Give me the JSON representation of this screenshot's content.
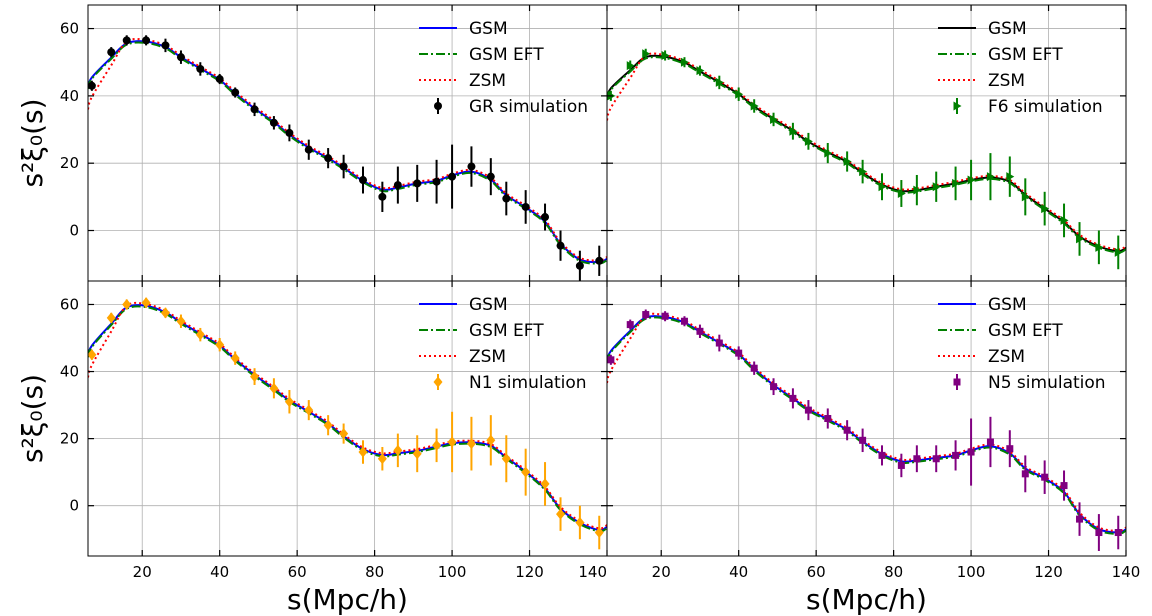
{
  "chart_data": [
    {
      "type": "line",
      "panel": "top-left",
      "xlabel": "",
      "ylabel": "s²ξ₀(s)",
      "xlim": [
        6,
        140
      ],
      "ylim": [
        -15,
        67
      ],
      "xticks": [
        20,
        40,
        60,
        80,
        100,
        120,
        140
      ],
      "yticks": [
        0,
        20,
        40,
        60
      ],
      "grid": true,
      "legend_position": "top-right",
      "models": [
        {
          "name": "GSM",
          "style": "solid",
          "color": "#0000ff"
        },
        {
          "name": "GSM EFT",
          "style": "dashdot",
          "color": "#008000"
        },
        {
          "name": "ZSM",
          "style": "dotted",
          "color": "#ff0000"
        }
      ],
      "simulation": {
        "name": "GR simulation",
        "color": "#000000",
        "marker": "circle",
        "x": [
          7,
          12,
          16,
          21,
          26,
          30,
          35,
          40,
          44,
          49,
          54,
          58,
          63,
          68,
          72,
          77,
          82,
          86,
          91,
          96,
          100,
          105,
          110,
          114,
          119,
          124,
          128,
          133,
          138
        ],
        "y": [
          43,
          53,
          56.5,
          56.5,
          55,
          51.5,
          48,
          45,
          41,
          36,
          32,
          29,
          24,
          21.5,
          19,
          15,
          10,
          13.5,
          14,
          14.5,
          16,
          19,
          16,
          9.5,
          7,
          4,
          -4.5,
          -10.5,
          -9
        ],
        "err": [
          1.5,
          1.5,
          1.5,
          1.5,
          2,
          2,
          2,
          1.5,
          1.5,
          2,
          2,
          2.5,
          3,
          3,
          3.5,
          4,
          4.5,
          5.5,
          5.5,
          6.5,
          9.5,
          6,
          5.5,
          5,
          5,
          4,
          4.5,
          4.5,
          4.5
        ]
      }
    },
    {
      "type": "line",
      "panel": "top-right",
      "xlabel": "",
      "ylabel": "",
      "xlim": [
        6,
        140
      ],
      "ylim": [
        -15,
        67
      ],
      "xticks": [
        20,
        40,
        60,
        80,
        100,
        120,
        140
      ],
      "yticks": [
        0,
        20,
        40,
        60
      ],
      "grid": true,
      "legend_position": "top-right",
      "models": [
        {
          "name": "GSM",
          "style": "solid",
          "color": "#000000"
        },
        {
          "name": "GSM EFT",
          "style": "dashdot",
          "color": "#008000"
        },
        {
          "name": "ZSM",
          "style": "dotted",
          "color": "#ff0000"
        }
      ],
      "simulation": {
        "name": "F6 simulation",
        "color": "#008000",
        "marker": "triangle-right",
        "x": [
          7,
          12,
          16,
          21,
          26,
          30,
          35,
          40,
          44,
          49,
          54,
          58,
          63,
          68,
          72,
          77,
          82,
          86,
          91,
          96,
          100,
          105,
          110,
          114,
          119,
          124,
          128,
          133,
          138
        ],
        "y": [
          40,
          49,
          52.5,
          52,
          50,
          47.5,
          44,
          40.5,
          37,
          33,
          29.5,
          26.5,
          23,
          20.5,
          17.5,
          13,
          11,
          12,
          13,
          14,
          15,
          16,
          16,
          10,
          6.5,
          3,
          -2.5,
          -5,
          -6.5
        ],
        "err": [
          1.5,
          1.5,
          1.5,
          1.5,
          1.5,
          1.5,
          2,
          2,
          2,
          2,
          2.5,
          2.5,
          3,
          3,
          3.5,
          4,
          4,
          4.5,
          4.5,
          5,
          6,
          7,
          6,
          5.5,
          5,
          5,
          5,
          5,
          5
        ]
      }
    },
    {
      "type": "line",
      "panel": "bottom-left",
      "xlabel": "s(Mpc/h)",
      "ylabel": "s²ξ₀(s)",
      "xlim": [
        6,
        140
      ],
      "ylim": [
        -15,
        67
      ],
      "xticks": [
        20,
        40,
        60,
        80,
        100,
        120,
        140
      ],
      "yticks": [
        0,
        20,
        40,
        60
      ],
      "grid": true,
      "legend_position": "top-right",
      "models": [
        {
          "name": "GSM",
          "style": "solid",
          "color": "#0000ff"
        },
        {
          "name": "GSM EFT",
          "style": "dashdot",
          "color": "#008000"
        },
        {
          "name": "ZSM",
          "style": "dotted",
          "color": "#ff0000"
        }
      ],
      "simulation": {
        "name": "N1 simulation",
        "color": "#ffa500",
        "marker": "diamond",
        "x": [
          7,
          12,
          16,
          21,
          26,
          30,
          35,
          40,
          44,
          49,
          54,
          58,
          63,
          68,
          72,
          77,
          82,
          86,
          91,
          96,
          100,
          105,
          110,
          114,
          119,
          124,
          128,
          133,
          138
        ],
        "y": [
          45,
          56,
          60,
          60.5,
          57.5,
          55,
          51,
          48,
          44,
          38.5,
          35,
          31,
          28.5,
          24,
          21.5,
          16,
          14,
          16.5,
          15.5,
          18,
          19,
          18.5,
          19.5,
          14,
          10,
          6.5,
          -2.5,
          -5,
          -8
        ],
        "err": [
          1.5,
          1.5,
          1.5,
          1.5,
          1.5,
          2,
          2,
          2,
          2,
          2.5,
          3,
          3.5,
          3,
          3,
          3,
          3.5,
          3.5,
          5,
          5.5,
          5,
          9,
          8,
          7.5,
          7,
          7,
          6.5,
          5,
          5,
          5
        ]
      }
    },
    {
      "type": "line",
      "panel": "bottom-right",
      "xlabel": "s(Mpc/h)",
      "ylabel": "",
      "xlim": [
        6,
        140
      ],
      "ylim": [
        -15,
        67
      ],
      "xticks": [
        20,
        40,
        60,
        80,
        100,
        120,
        140
      ],
      "yticks": [
        0,
        20,
        40,
        60
      ],
      "grid": true,
      "legend_position": "top-right",
      "models": [
        {
          "name": "GSM",
          "style": "solid",
          "color": "#0000ff"
        },
        {
          "name": "GSM EFT",
          "style": "dashdot",
          "color": "#008000"
        },
        {
          "name": "ZSM",
          "style": "dotted",
          "color": "#ff0000"
        }
      ],
      "simulation": {
        "name": "N5 simulation",
        "color": "#800080",
        "marker": "square",
        "x": [
          7,
          12,
          16,
          21,
          26,
          30,
          35,
          40,
          44,
          49,
          54,
          58,
          63,
          68,
          72,
          77,
          82,
          86,
          91,
          96,
          100,
          105,
          110,
          114,
          119,
          124,
          128,
          133,
          138
        ],
        "y": [
          43.5,
          54,
          57,
          56.5,
          55,
          52,
          48.5,
          45.5,
          41,
          35.5,
          32,
          28.5,
          26,
          22.5,
          19.5,
          15,
          12,
          14,
          14,
          15,
          16,
          19,
          17,
          9.5,
          8.5,
          6,
          -4,
          -8,
          -8
        ],
        "err": [
          1.5,
          1.5,
          1.5,
          1.5,
          1.5,
          2,
          2.5,
          2,
          2,
          2.5,
          3,
          3,
          3,
          3,
          3.5,
          3,
          3.5,
          4,
          4,
          4.5,
          10,
          7.5,
          5.5,
          5.5,
          5,
          4.5,
          5,
          5.5,
          5
        ]
      }
    }
  ]
}
